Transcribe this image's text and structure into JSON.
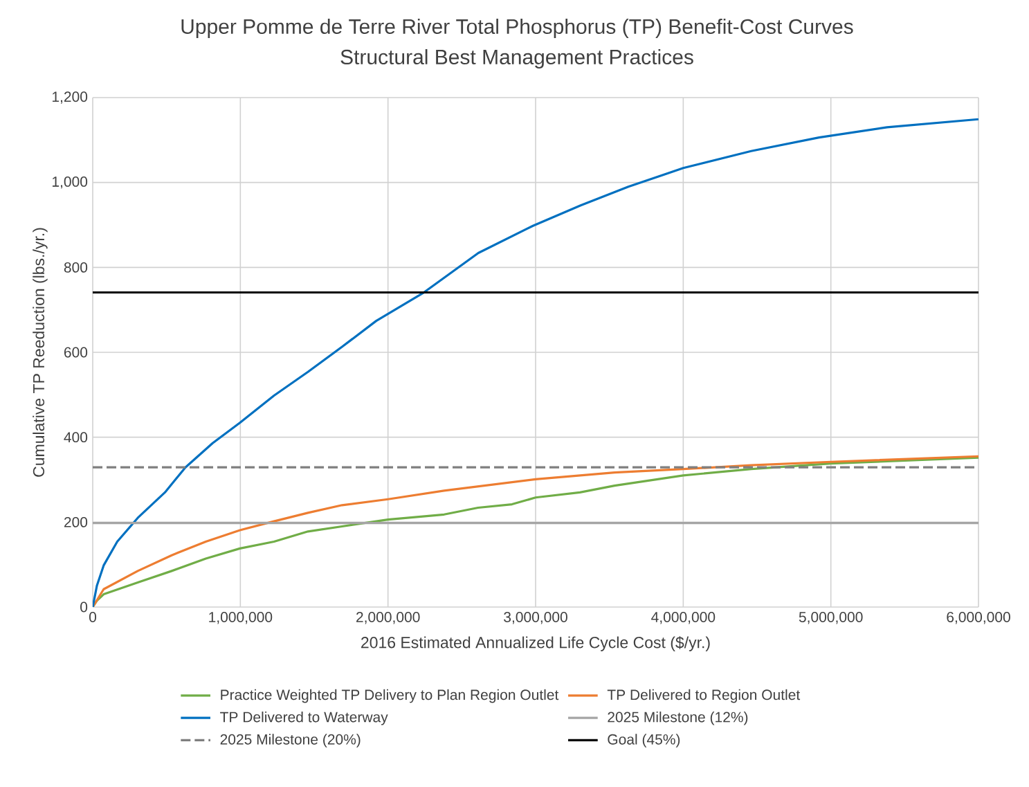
{
  "chart_data": {
    "type": "line",
    "title": "Upper Pomme de Terre River Total Phosphorus (TP) Benefit-Cost Curves",
    "subtitle": "Structural Best Management Practices",
    "xlabel": "2016 Estimated Annualized Life Cycle Cost ($/yr.)",
    "ylabel": "Cumulative TP Reeduction (lbs./yr.)",
    "xlim": [
      0,
      6000000
    ],
    "ylim": [
      0,
      1200
    ],
    "xticks": [
      0,
      {
        "value": 1000000,
        "label": "1,000,000"
      },
      {
        "value": 2000000,
        "label": "2,000,000"
      },
      {
        "value": 3000000,
        "label": "3,000,000"
      },
      {
        "value": 4000000,
        "label": "4,000,000"
      },
      {
        "value": 5000000,
        "label": "5,000,000"
      },
      {
        "value": 6000000,
        "label": "6,000,000"
      }
    ],
    "yticks": [
      0,
      200,
      400,
      600,
      800,
      {
        "value": 1000,
        "label": "1,000"
      },
      {
        "value": 1200,
        "label": "1,200"
      }
    ],
    "grid": true,
    "legend": "bottom",
    "marker": "none",
    "series": [
      {
        "name": "Practice Weighted TP Delivery to Plan Region Outlet",
        "color": "#70ad47",
        "x": [
          0,
          28000,
          74000,
          305000,
          535000,
          766000,
          997000,
          1228000,
          1458000,
          1689000,
          2000000,
          2380000,
          2610000,
          2840000,
          3000000,
          3300000,
          3535000,
          4000000,
          4460000,
          5000000,
          6000000
        ],
        "values": [
          0,
          15,
          30,
          58,
          85,
          114,
          138,
          154,
          178,
          190,
          206,
          218,
          234,
          242,
          258,
          270,
          286,
          310,
          325,
          338,
          352
        ]
      },
      {
        "name": "TP Delivered to Region Outlet",
        "color": "#ed7d31",
        "x": [
          0,
          74000,
          305000,
          535000,
          766000,
          997000,
          1228000,
          1458000,
          1689000,
          2000000,
          2380000,
          3000000,
          3535000,
          4000000,
          4460000,
          5000000,
          6000000
        ],
        "values": [
          0,
          42,
          85,
          122,
          154,
          181,
          202,
          222,
          240,
          254,
          274,
          301,
          317,
          325,
          334,
          342,
          355
        ]
      },
      {
        "name": "TP Delivered to Waterway",
        "color": "#0070c0",
        "x": [
          0,
          28000,
          74000,
          166000,
          305000,
          489000,
          628000,
          812000,
          997000,
          1228000,
          1458000,
          1689000,
          1920000,
          2243000,
          2612000,
          2982000,
          3305000,
          3628000,
          4000000,
          4460000,
          4920000,
          5380000,
          6000000
        ],
        "values": [
          0,
          50,
          98,
          154,
          210,
          270,
          329,
          386,
          434,
          498,
          554,
          613,
          674,
          741,
          834,
          898,
          946,
          990,
          1034,
          1074,
          1106,
          1130,
          1149
        ]
      },
      {
        "name": "2025 Milestone (12%)",
        "color": "#a5a5a5",
        "line_style": "solid",
        "x": [
          0,
          6000000
        ],
        "values": [
          198,
          198
        ]
      },
      {
        "name": "2025 Milestone (20%)",
        "color": "#7f7f7f",
        "line_style": "dashed",
        "x": [
          0,
          6000000
        ],
        "values": [
          329,
          329
        ]
      },
      {
        "name": "Goal (45%)",
        "color": "#000000",
        "line_style": "solid",
        "x": [
          0,
          6000000
        ],
        "values": [
          741,
          741
        ]
      }
    ]
  }
}
